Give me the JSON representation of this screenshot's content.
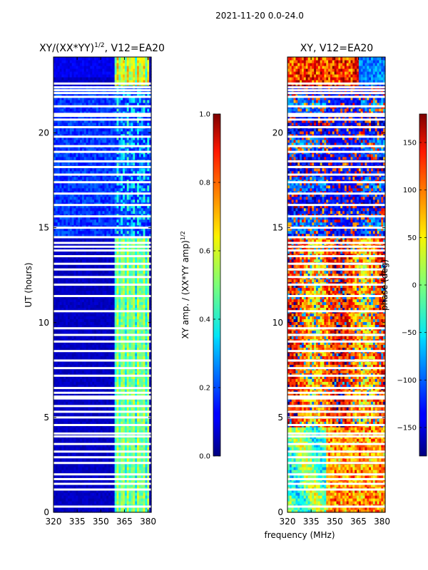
{
  "chart_data": {
    "suptitle": "2021-11-20 0.0-24.0",
    "type": "heatmap",
    "xlabel": "frequency (MHz)",
    "panels": [
      {
        "title_main": "XY/(XX*YY)",
        "title_sup": "1/2",
        "title_tail": ", V12=EA20",
        "ylabel": "UT (hours)",
        "x_range": [
          320,
          382
        ],
        "y_range": [
          0,
          24
        ],
        "x_ticks": [
          320,
          335,
          350,
          365,
          380
        ],
        "y_ticks": [
          0,
          5,
          10,
          15,
          20
        ],
        "colorbar": {
          "label_main": "XY amp. / (XX*YY amp)",
          "label_sup": "1/2",
          "range": [
            0.0,
            1.0
          ],
          "ticks": [
            "0.0",
            "0.2",
            "0.4",
            "0.6",
            "0.8",
            "1.0"
          ],
          "tick_values": [
            0.0,
            0.2,
            0.4,
            0.6,
            0.8,
            1.0
          ]
        }
      },
      {
        "title_main": "XY, V12=EA20",
        "ylabel": "",
        "x_range": [
          320,
          382
        ],
        "y_range": [
          0,
          24
        ],
        "x_ticks": [
          320,
          335,
          350,
          365,
          380
        ],
        "y_ticks": [
          0,
          5,
          10,
          15,
          20
        ],
        "colorbar": {
          "label_main": "phase (deg)",
          "range": [
            -180,
            180
          ],
          "ticks": [
            "−150",
            "−100",
            "−50",
            "0",
            "50",
            "100",
            "150"
          ],
          "tick_values": [
            -150,
            -100,
            -50,
            0,
            50,
            100,
            150
          ]
        }
      }
    ]
  }
}
